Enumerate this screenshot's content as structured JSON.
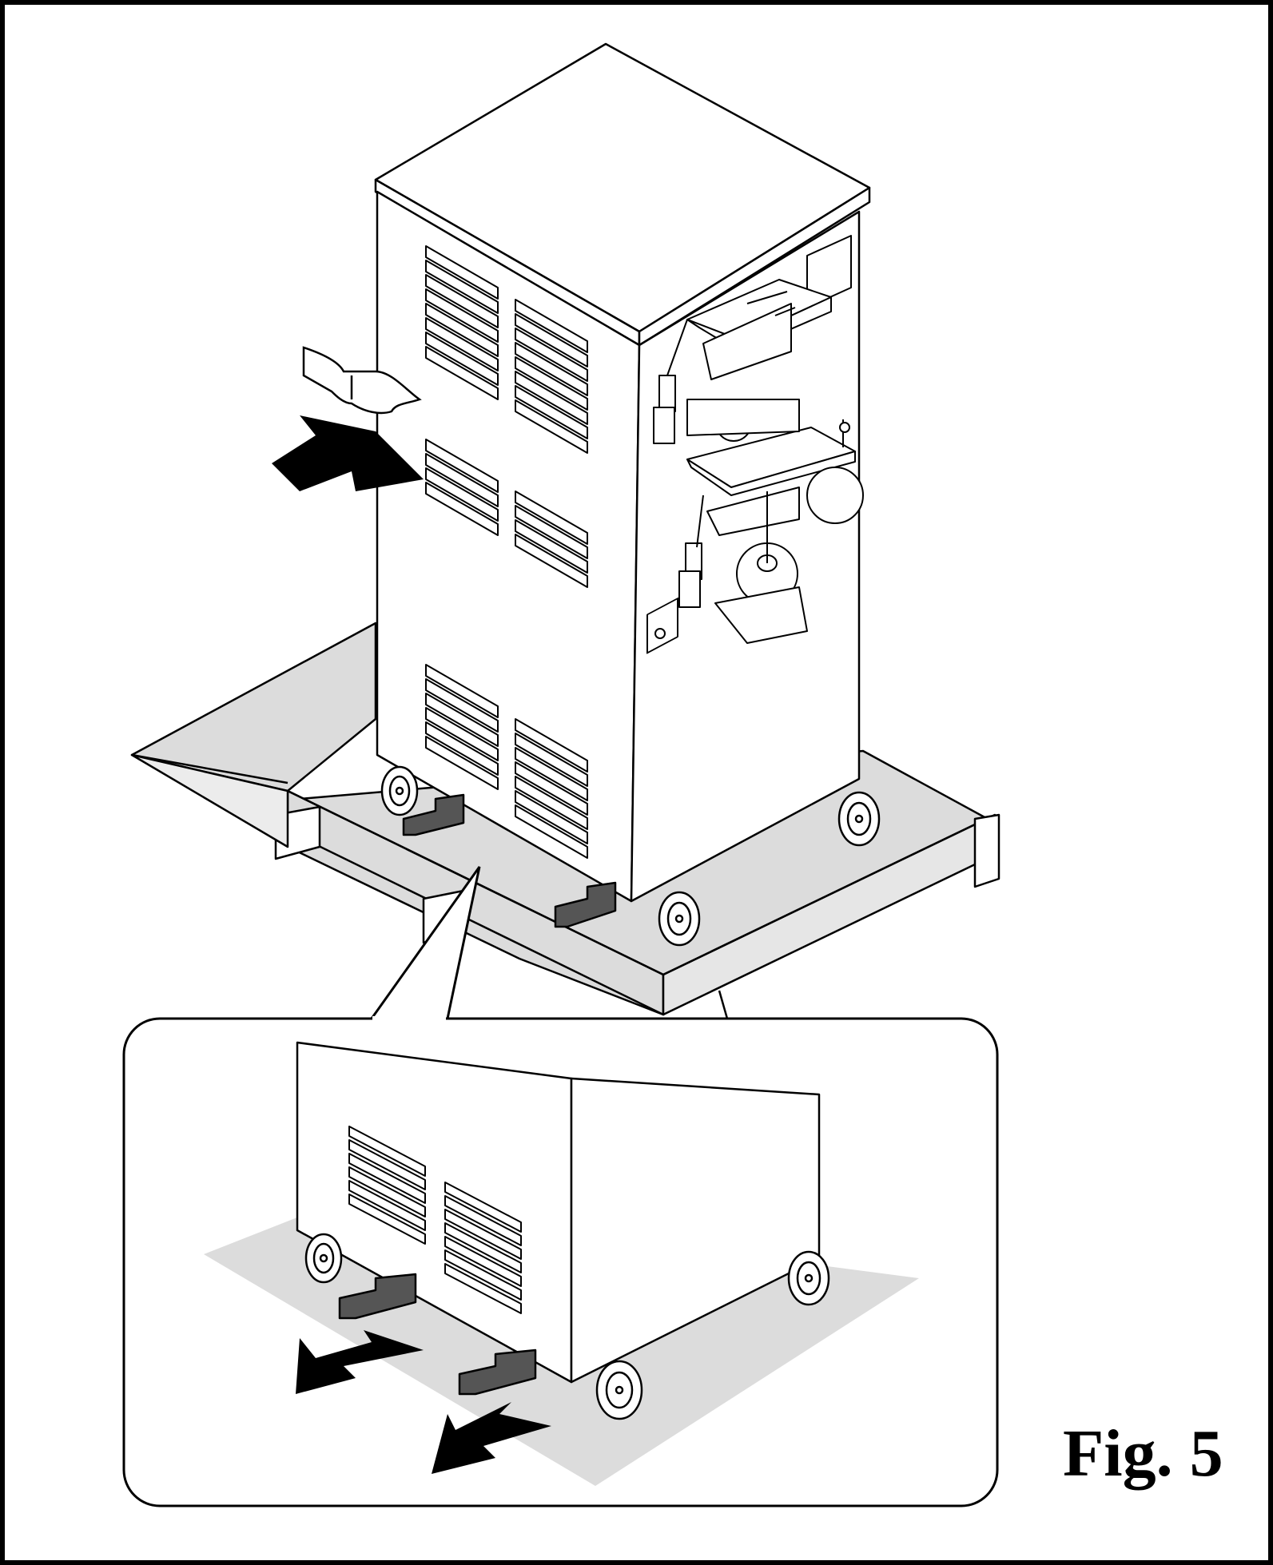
{
  "figure": {
    "caption": "Fig. 5",
    "colors": {
      "line": "#000000",
      "background": "#ffffff",
      "pallet_fill": "#dcdcdc",
      "block_fill": "#555555",
      "arrow_fill": "#000000"
    },
    "icons": [
      "soft-serve-machine-illustration",
      "hand-icon",
      "direction-arrow-icon",
      "wheel-icon",
      "wooden-block-icon"
    ]
  }
}
